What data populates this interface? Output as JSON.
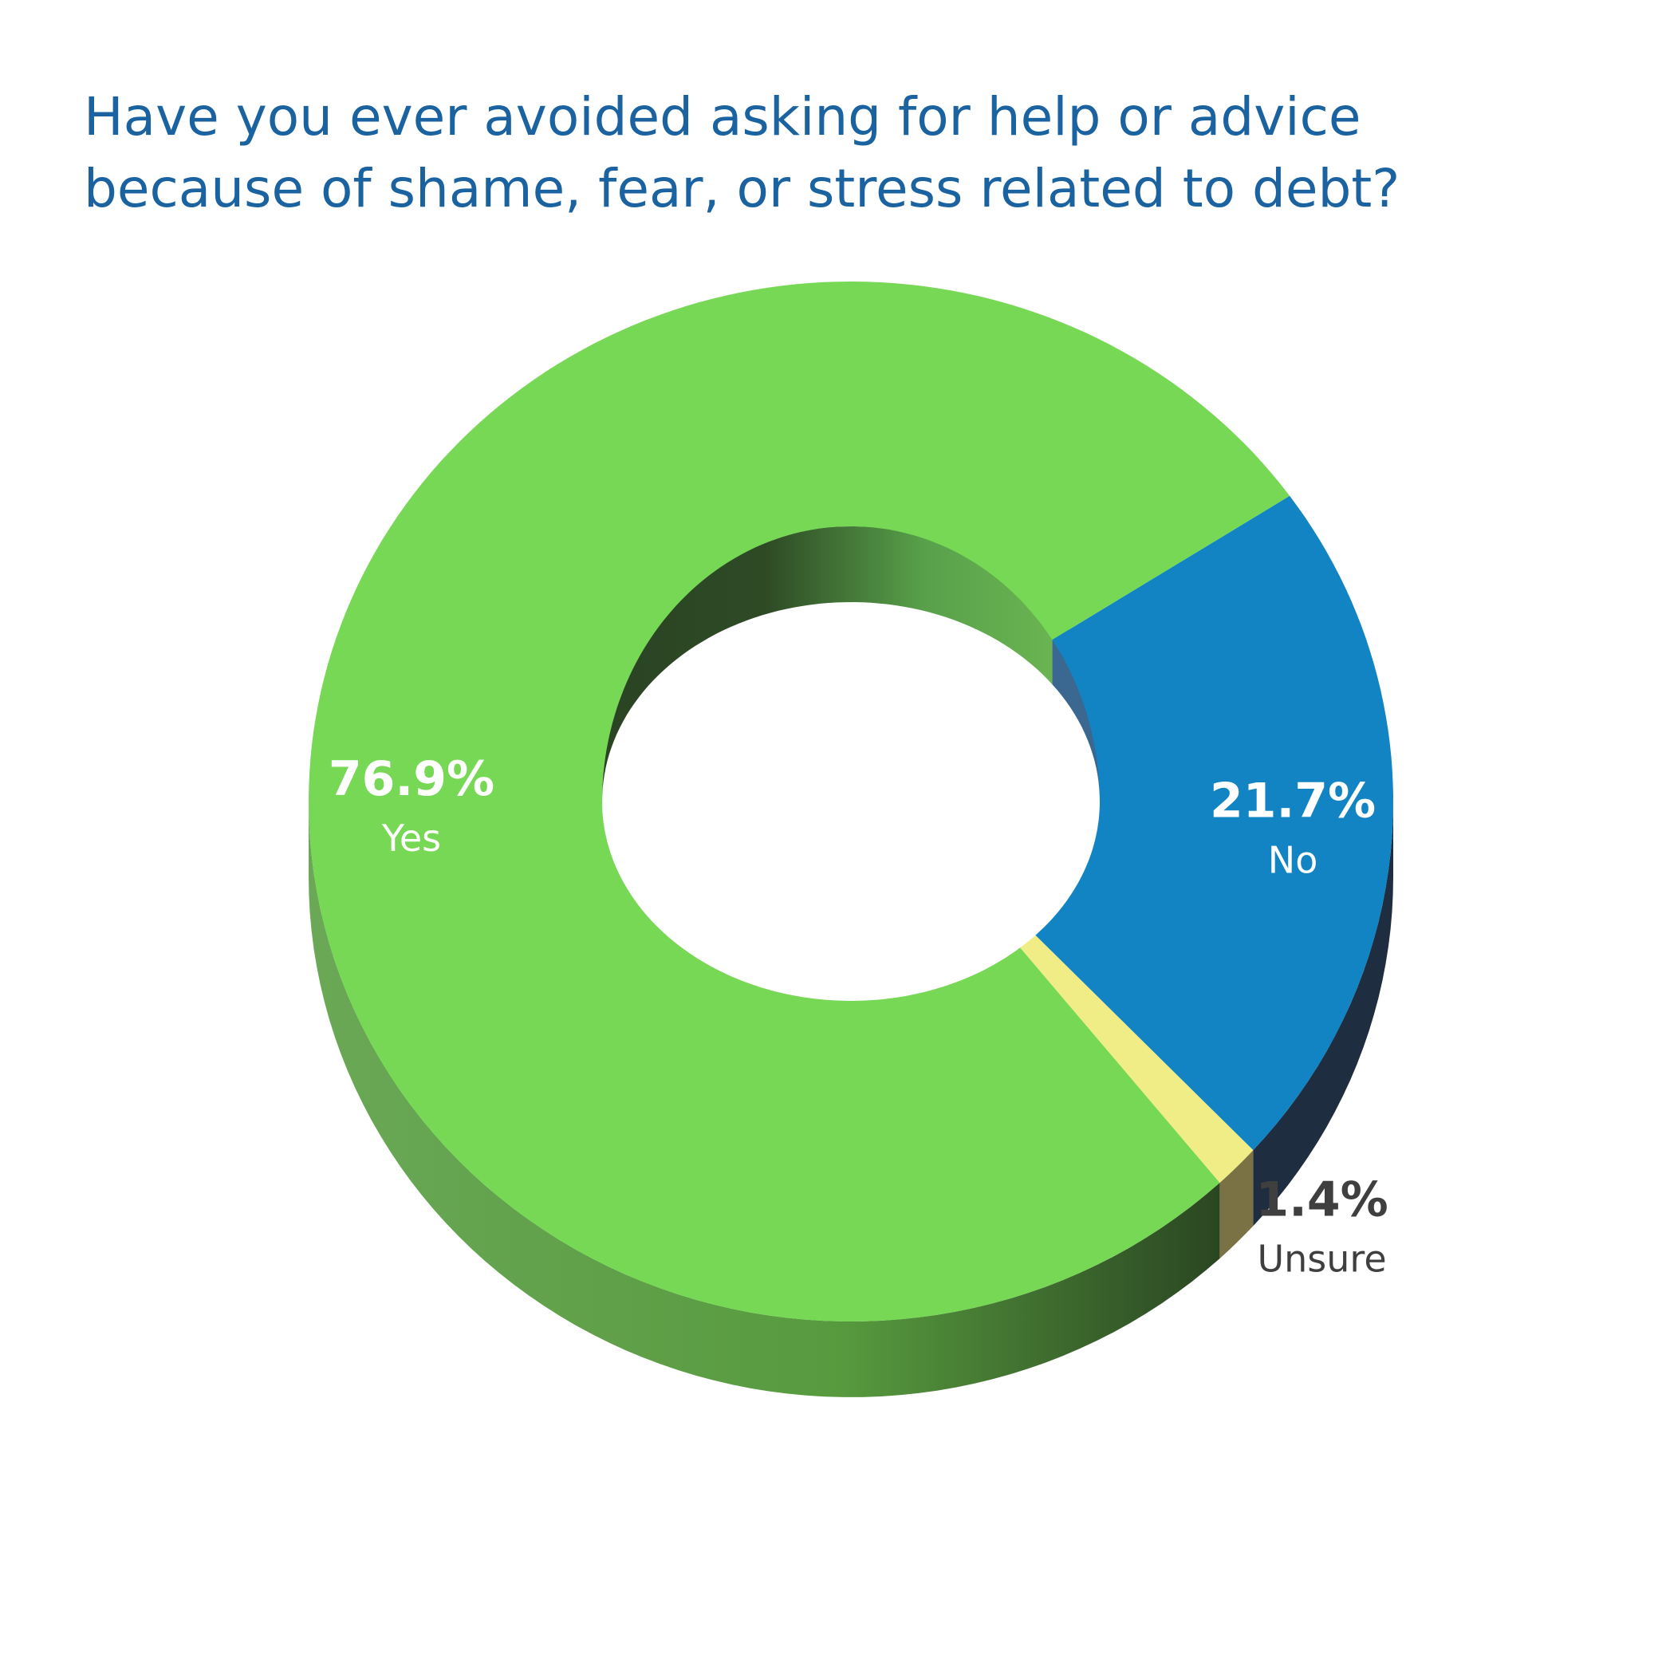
{
  "chart_data": {
    "type": "pie",
    "style": "3d-donut",
    "title_lines": [
      "Have you ever avoided asking for help or advice",
      "because of shame, fear, or stress related to debt?"
    ],
    "categories": [
      "No",
      "Unsure",
      "Yes"
    ],
    "values": [
      21.7,
      1.4,
      76.9
    ],
    "labels": [
      "21.7%",
      "1.4%",
      "76.9%"
    ],
    "colors": [
      "#1284c3",
      "#f0ed86",
      "#77d856"
    ],
    "side_colors": [
      "#1f2d40",
      "#7a7145",
      "#5aa447"
    ],
    "label_colors": [
      "#ffffff",
      "#3f3f3f",
      "#ffffff"
    ],
    "legend": "none"
  }
}
